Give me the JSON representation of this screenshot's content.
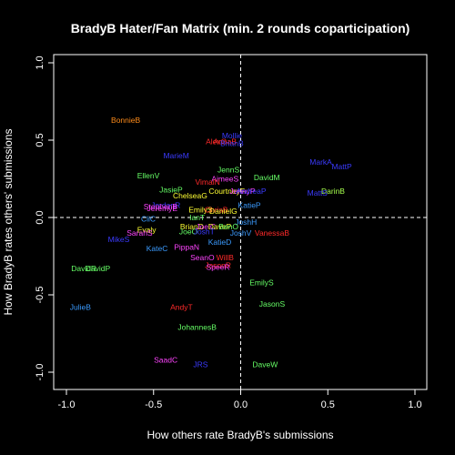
{
  "chart_data": {
    "type": "scatter",
    "title": "BradyB Hater/Fan Matrix (min. 2 rounds coparticipation)",
    "xlabel": "How others rate BradyB's submissions",
    "ylabel": "How BradyB rates others' submissions",
    "xlim": [
      -1.0,
      1.0
    ],
    "ylim": [
      -1.0,
      1.0
    ],
    "x_ticks": [
      "-1.0",
      "-0.5",
      "0.0",
      "0.5",
      "1.0"
    ],
    "y_ticks": [
      "-1.0",
      "-0.5",
      "0.0",
      "0.5",
      "1.0"
    ],
    "grid": false,
    "reference_lines": [
      0,
      0
    ],
    "points": [
      {
        "label": "BonnieB",
        "x": -0.66,
        "y": 0.63,
        "color": "#ff8c1a"
      },
      {
        "label": "Mollie",
        "x": -0.05,
        "y": 0.53,
        "color": "#3b3bff"
      },
      {
        "label": "AlexG",
        "x": -0.14,
        "y": 0.49,
        "color": "#ff2a2a"
      },
      {
        "label": "AnnaB",
        "x": -0.09,
        "y": 0.49,
        "color": "#ff2a2a"
      },
      {
        "label": "BrianB",
        "x": -0.05,
        "y": 0.48,
        "color": "#3b3bff"
      },
      {
        "label": "MarieM",
        "x": -0.37,
        "y": 0.4,
        "color": "#3b3bff"
      },
      {
        "label": "MarkA",
        "x": 0.46,
        "y": 0.36,
        "color": "#3b3bff"
      },
      {
        "label": "MattP",
        "x": 0.58,
        "y": 0.33,
        "color": "#3b3bff"
      },
      {
        "label": "JennS",
        "x": -0.07,
        "y": 0.31,
        "color": "#66ff66"
      },
      {
        "label": "DavidM",
        "x": 0.15,
        "y": 0.26,
        "color": "#66ff66"
      },
      {
        "label": "EllenV",
        "x": -0.53,
        "y": 0.27,
        "color": "#66ff66"
      },
      {
        "label": "AimeeS",
        "x": -0.09,
        "y": 0.25,
        "color": "#ff44ff"
      },
      {
        "label": "VimalN",
        "x": -0.19,
        "y": 0.23,
        "color": "#ff2a2a"
      },
      {
        "label": "JasieP",
        "x": -0.4,
        "y": 0.18,
        "color": "#66ff66"
      },
      {
        "label": "CourtneyF",
        "x": -0.08,
        "y": 0.17,
        "color": "#ffff33"
      },
      {
        "label": "JennyP",
        "x": 0.01,
        "y": 0.17,
        "color": "#ff44ff"
      },
      {
        "label": "AndreaP",
        "x": 0.06,
        "y": 0.17,
        "color": "#3b3bff"
      },
      {
        "label": "DarinB",
        "x": 0.53,
        "y": 0.17,
        "color": "#a6ff4d"
      },
      {
        "label": "MattS",
        "x": 0.44,
        "y": 0.16,
        "color": "#3b3bff"
      },
      {
        "label": "ChelseaG",
        "x": -0.29,
        "y": 0.14,
        "color": "#ffff33"
      },
      {
        "label": "JordanR",
        "x": -0.43,
        "y": 0.08,
        "color": "#3b3bff"
      },
      {
        "label": "StephenB",
        "x": -0.46,
        "y": 0.07,
        "color": "#ff44ff"
      },
      {
        "label": "KatieP",
        "x": 0.05,
        "y": 0.08,
        "color": "#3b9bff"
      },
      {
        "label": "JeremyE",
        "x": -0.45,
        "y": 0.06,
        "color": "#ff44ff"
      },
      {
        "label": "EmilyS",
        "x": -0.23,
        "y": 0.05,
        "color": "#ffff33"
      },
      {
        "label": "ChrisB",
        "x": -0.14,
        "y": 0.05,
        "color": "#ff2a2a"
      },
      {
        "label": "DanielG",
        "x": -0.1,
        "y": 0.04,
        "color": "#ffff33"
      },
      {
        "label": "IanT",
        "x": -0.25,
        "y": 0.0,
        "color": "#66ff66"
      },
      {
        "label": "CliC",
        "x": -0.53,
        "y": -0.01,
        "color": "#3b9bff"
      },
      {
        "label": "JoshH",
        "x": 0.03,
        "y": -0.03,
        "color": "#3b9bff"
      },
      {
        "label": "BrianD",
        "x": -0.28,
        "y": -0.06,
        "color": "#ffff33"
      },
      {
        "label": "JoelC",
        "x": -0.2,
        "y": -0.06,
        "color": "#ff44ff"
      },
      {
        "label": "DaveP",
        "x": -0.12,
        "y": -0.06,
        "color": "#ffff33"
      },
      {
        "label": "BenO",
        "x": -0.07,
        "y": -0.06,
        "color": "#66ff66"
      },
      {
        "label": "Evaly",
        "x": -0.54,
        "y": -0.08,
        "color": "#ffff33"
      },
      {
        "label": "JoeO",
        "x": -0.3,
        "y": -0.09,
        "color": "#66ff66"
      },
      {
        "label": "JoshT",
        "x": -0.21,
        "y": -0.09,
        "color": "#3b3bff"
      },
      {
        "label": "JoshV",
        "x": 0.0,
        "y": -0.1,
        "color": "#3b9bff"
      },
      {
        "label": "VanessaB",
        "x": 0.18,
        "y": -0.1,
        "color": "#ff2a2a"
      },
      {
        "label": "SarahS",
        "x": -0.58,
        "y": -0.1,
        "color": "#ff44ff"
      },
      {
        "label": "MikeS",
        "x": -0.7,
        "y": -0.14,
        "color": "#3b3bff"
      },
      {
        "label": "KatieD",
        "x": -0.12,
        "y": -0.16,
        "color": "#3b9bff"
      },
      {
        "label": "KateC",
        "x": -0.48,
        "y": -0.2,
        "color": "#3b9bff"
      },
      {
        "label": "PippaN",
        "x": -0.31,
        "y": -0.19,
        "color": "#ff44ff"
      },
      {
        "label": "SeanO",
        "x": -0.22,
        "y": -0.26,
        "color": "#ff44ff"
      },
      {
        "label": "WillB",
        "x": -0.09,
        "y": -0.26,
        "color": "#ff2a2a"
      },
      {
        "label": "JasonR",
        "x": -0.13,
        "y": -0.31,
        "color": "#ff2a2a"
      },
      {
        "label": "SpeeR",
        "x": -0.13,
        "y": -0.32,
        "color": "#ff44ff"
      },
      {
        "label": "DavidR",
        "x": -0.9,
        "y": -0.33,
        "color": "#66ff66"
      },
      {
        "label": "DavidP",
        "x": -0.82,
        "y": -0.33,
        "color": "#66ff66"
      },
      {
        "label": "EmilyS",
        "x": 0.12,
        "y": -0.42,
        "color": "#66ff66"
      },
      {
        "label": "JasonS",
        "x": 0.18,
        "y": -0.56,
        "color": "#66ff66"
      },
      {
        "label": "JulieB",
        "x": -0.92,
        "y": -0.58,
        "color": "#3b9bff"
      },
      {
        "label": "AndyT",
        "x": -0.34,
        "y": -0.58,
        "color": "#ff2a2a"
      },
      {
        "label": "JohannesB",
        "x": -0.25,
        "y": -0.71,
        "color": "#66ff66"
      },
      {
        "label": "SaadC",
        "x": -0.43,
        "y": -0.92,
        "color": "#ff44ff"
      },
      {
        "label": "JRS",
        "x": -0.23,
        "y": -0.95,
        "color": "#3b3bff"
      },
      {
        "label": "DaveW",
        "x": 0.14,
        "y": -0.95,
        "color": "#66ff66"
      }
    ]
  }
}
